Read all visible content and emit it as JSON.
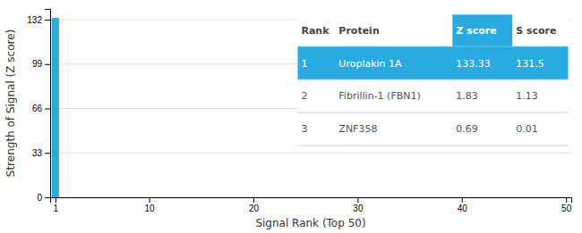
{
  "chart_data": {
    "type": "bar",
    "x": [
      1
    ],
    "values": [
      133.33
    ],
    "color": "#29ABE2",
    "xlim": [
      0.5,
      50.5
    ],
    "xticks": [
      1,
      10,
      20,
      30,
      40,
      50
    ],
    "ylim": [
      0,
      140
    ],
    "yticks": [
      0,
      33,
      66,
      99,
      132
    ],
    "xlabel": "Signal Rank (Top 50)",
    "ylabel": "Strength of Signal (Z score)",
    "grid": true,
    "table": {
      "columns": [
        "Rank",
        "Protein",
        "Z score",
        "S score"
      ],
      "rows": [
        [
          "1",
          "Uroplakin 1A",
          "133.33",
          "131.5"
        ],
        [
          "2",
          "Fibrillin-1 (FBN1)",
          "1.83",
          "1.13"
        ],
        [
          "3",
          "ZNF358",
          "0.69",
          "0.01"
        ]
      ]
    }
  }
}
